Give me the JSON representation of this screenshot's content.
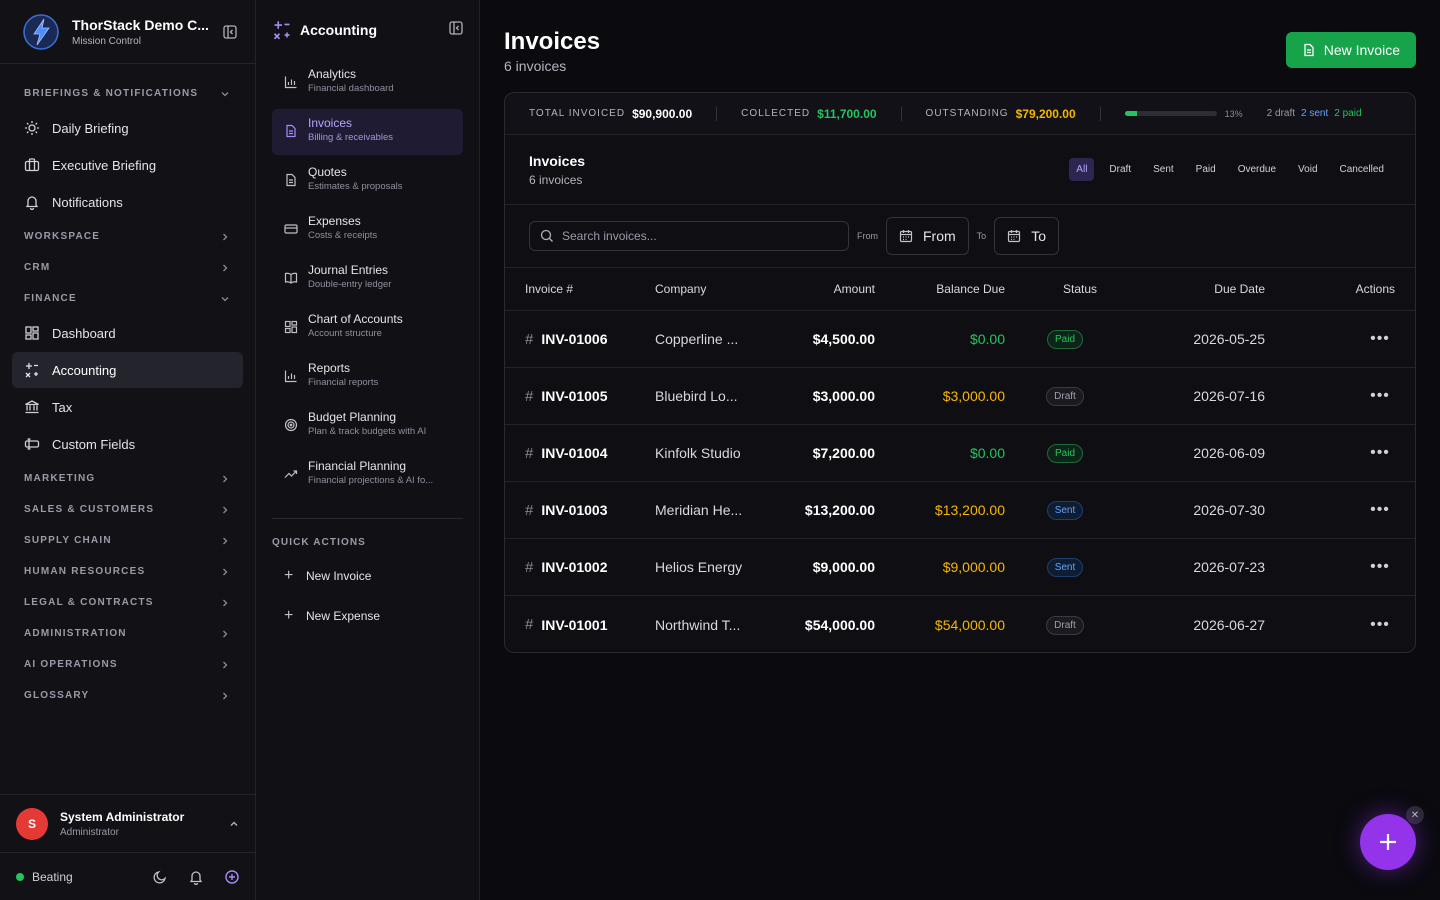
{
  "brand": {
    "title": "ThorStack Demo C...",
    "subtitle": "Mission Control"
  },
  "sidebar": {
    "sections": [
      {
        "label": "BRIEFINGS & NOTIFICATIONS",
        "expanded": true
      },
      {
        "label": "WORKSPACE"
      },
      {
        "label": "CRM"
      },
      {
        "label": "FINANCE",
        "expanded": true
      },
      {
        "label": "MARKETING"
      },
      {
        "label": "SALES & CUSTOMERS"
      },
      {
        "label": "SUPPLY CHAIN"
      },
      {
        "label": "HUMAN RESOURCES"
      },
      {
        "label": "LEGAL & CONTRACTS"
      },
      {
        "label": "ADMINISTRATION"
      },
      {
        "label": "AI OPERATIONS"
      },
      {
        "label": "GLOSSARY"
      }
    ],
    "briefings": [
      {
        "label": "Daily Briefing",
        "icon": "sun-icon"
      },
      {
        "label": "Executive Briefing",
        "icon": "briefcase-icon"
      },
      {
        "label": "Notifications",
        "icon": "bell-icon"
      }
    ],
    "finance": [
      {
        "label": "Dashboard",
        "icon": "dashboard-icon"
      },
      {
        "label": "Accounting",
        "icon": "accounting-icon",
        "active": true
      },
      {
        "label": "Tax",
        "icon": "landmark-icon"
      },
      {
        "label": "Custom Fields",
        "icon": "custom-fields-icon"
      }
    ]
  },
  "user": {
    "initial": "S",
    "name": "System Administrator",
    "role": "Administrator"
  },
  "footer": {
    "status": "Beating"
  },
  "subnav": {
    "title": "Accounting",
    "items": [
      {
        "label": "Analytics",
        "desc": "Financial dashboard",
        "icon": "bar-chart-icon"
      },
      {
        "label": "Invoices",
        "desc": "Billing & receivables",
        "icon": "file-text-icon",
        "active": true
      },
      {
        "label": "Quotes",
        "desc": "Estimates & proposals",
        "icon": "file-icon"
      },
      {
        "label": "Expenses",
        "desc": "Costs & receipts",
        "icon": "credit-card-icon"
      },
      {
        "label": "Journal Entries",
        "desc": "Double-entry ledger",
        "icon": "book-icon"
      },
      {
        "label": "Chart of Accounts",
        "desc": "Account structure",
        "icon": "grid-icon"
      },
      {
        "label": "Reports",
        "desc": "Financial reports",
        "icon": "bar-chart-icon"
      },
      {
        "label": "Budget Planning",
        "desc": "Plan & track budgets with AI",
        "icon": "target-icon"
      },
      {
        "label": "Financial Planning",
        "desc": "Financial projections & AI fo...",
        "icon": "trending-up-icon"
      }
    ],
    "quick_actions_title": "QUICK ACTIONS",
    "quick_actions": [
      "New Invoice",
      "New Expense"
    ]
  },
  "main": {
    "title": "Invoices",
    "subtitle": "6 invoices",
    "new_button": "New Invoice",
    "stats": {
      "total_label": "TOTAL INVOICED",
      "total_value": "$90,900.00",
      "collected_label": "COLLECTED",
      "collected_value": "$11,700.00",
      "outstanding_label": "OUTSTANDING",
      "outstanding_value": "$79,200.00",
      "progress_pct": 13,
      "progress_label": "13%",
      "draft": "2 draft",
      "sent": "2 sent",
      "paid": "2 paid"
    },
    "card_title": "Invoices",
    "card_subtitle": "6 invoices",
    "tabs": [
      "All",
      "Draft",
      "Sent",
      "Paid",
      "Overdue",
      "Void",
      "Cancelled"
    ],
    "search_placeholder": "Search invoices...",
    "from_label": "From",
    "from_button": "From",
    "to_label": "To",
    "to_button": "To",
    "columns": [
      "Invoice #",
      "Company",
      "Amount",
      "Balance Due",
      "Status",
      "Due Date",
      "Actions"
    ],
    "rows": [
      {
        "invoice": "INV-01006",
        "company": "Copperline ...",
        "amount": "$4,500.00",
        "balance": "$0.00",
        "status": "Paid",
        "due": "2026-05-25"
      },
      {
        "invoice": "INV-01005",
        "company": "Bluebird Lo...",
        "amount": "$3,000.00",
        "balance": "$3,000.00",
        "status": "Draft",
        "due": "2026-07-16"
      },
      {
        "invoice": "INV-01004",
        "company": "Kinfolk Studio",
        "amount": "$7,200.00",
        "balance": "$0.00",
        "status": "Paid",
        "due": "2026-06-09"
      },
      {
        "invoice": "INV-01003",
        "company": "Meridian He...",
        "amount": "$13,200.00",
        "balance": "$13,200.00",
        "status": "Sent",
        "due": "2026-07-30"
      },
      {
        "invoice": "INV-01002",
        "company": "Helios Energy",
        "amount": "$9,000.00",
        "balance": "$9,000.00",
        "status": "Sent",
        "due": "2026-07-23"
      },
      {
        "invoice": "INV-01001",
        "company": "Northwind T...",
        "amount": "$54,000.00",
        "balance": "$54,000.00",
        "status": "Draft",
        "due": "2026-06-27"
      }
    ]
  },
  "colors": {
    "accent": "#9333ea",
    "success": "#16a34a",
    "warning": "#f5b700",
    "info": "#60a5fa"
  }
}
